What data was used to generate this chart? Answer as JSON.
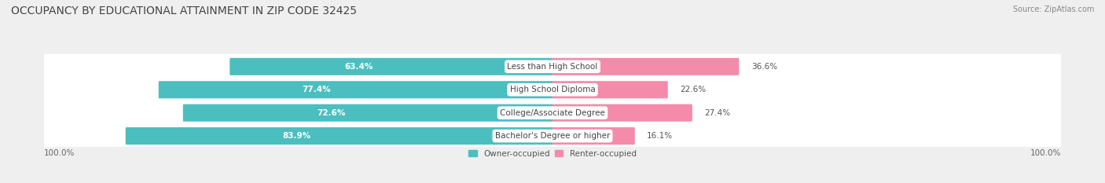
{
  "title": "OCCUPANCY BY EDUCATIONAL ATTAINMENT IN ZIP CODE 32425",
  "source": "Source: ZipAtlas.com",
  "categories": [
    "Less than High School",
    "High School Diploma",
    "College/Associate Degree",
    "Bachelor's Degree or higher"
  ],
  "owner_pct": [
    63.4,
    77.4,
    72.6,
    83.9
  ],
  "renter_pct": [
    36.6,
    22.6,
    27.4,
    16.1
  ],
  "owner_color": "#4BBFBF",
  "renter_color": "#F48BAB",
  "bg_color": "#efefef",
  "title_fontsize": 10,
  "source_fontsize": 7,
  "label_fontsize": 7.5,
  "axis_label_fontsize": 7.5,
  "legend_fontsize": 7.5
}
